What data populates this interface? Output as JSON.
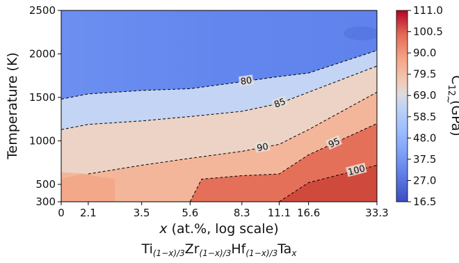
{
  "chart_data": {
    "type": "heatmap",
    "title": "",
    "xlabel": "x (at.%, log scale)",
    "xlabel_parts": {
      "var": "x",
      "rest": " (at.%, log scale)"
    },
    "composition_label": {
      "elements": [
        {
          "el": "Ti",
          "sub": "(1−x)/3"
        },
        {
          "el": "Zr",
          "sub": "(1−x)/3"
        },
        {
          "el": "Hf",
          "sub": "(1−x)/3"
        },
        {
          "el": "Ta",
          "sub": "x"
        }
      ]
    },
    "ylabel": "Temperature (K)",
    "x_scale": "log",
    "x_ticks": [
      0,
      2.1,
      3.5,
      5.6,
      8.3,
      11.1,
      16.6,
      33.3
    ],
    "x_tick_labels": [
      "0",
      "2.1",
      "3.5",
      "5.6",
      "8.3",
      "11.1",
      "16.6",
      "33.3"
    ],
    "y_ticks": [
      300,
      500,
      1000,
      1500,
      2000,
      2500
    ],
    "y_tick_labels": [
      "300",
      "500",
      "1000",
      "1500",
      "2000",
      "2500"
    ],
    "xlim": [
      0,
      33.3
    ],
    "ylim": [
      300,
      2500
    ],
    "colorbar": {
      "label": "C̃₁₂ (GPa)",
      "label_parts": {
        "symbol": "C",
        "sub": "12",
        "unit": " (GPa)"
      },
      "min": 16.5,
      "max": 111.0,
      "colormap": "coolwarm",
      "ticks": [
        111.0,
        100.5,
        90.0,
        79.5,
        69.0,
        58.5,
        48.0,
        37.5,
        27.0,
        16.5
      ],
      "tick_labels": [
        "111.0",
        "100.5",
        "90.0",
        "79.5",
        "69.0",
        "58.5",
        "48.0",
        "37.5",
        "27.0",
        "16.5"
      ]
    },
    "contours": [
      {
        "level": 80,
        "label": "80",
        "points": [
          [
            0,
            1480
          ],
          [
            2.1,
            1540
          ],
          [
            3.5,
            1580
          ],
          [
            5.6,
            1600
          ],
          [
            8.3,
            1680
          ],
          [
            11.1,
            1740
          ],
          [
            16.6,
            1780
          ],
          [
            33.3,
            2040
          ]
        ]
      },
      {
        "level": 85,
        "label": "85",
        "points": [
          [
            0,
            1130
          ],
          [
            2.1,
            1190
          ],
          [
            3.5,
            1230
          ],
          [
            5.6,
            1280
          ],
          [
            8.3,
            1340
          ],
          [
            11.1,
            1430
          ],
          [
            16.6,
            1560
          ],
          [
            33.3,
            1860
          ]
        ]
      },
      {
        "level": 90,
        "label": "90",
        "points": [
          [
            2.1,
            620
          ],
          [
            3.5,
            720
          ],
          [
            5.6,
            800
          ],
          [
            8.3,
            880
          ],
          [
            11.1,
            960
          ],
          [
            16.6,
            1130
          ],
          [
            33.3,
            1560
          ]
        ]
      },
      {
        "level": 95,
        "label": "95",
        "points": [
          [
            5.6,
            300
          ],
          [
            6.2,
            560
          ],
          [
            8.3,
            600
          ],
          [
            11.1,
            620
          ],
          [
            16.6,
            840
          ],
          [
            33.3,
            1200
          ]
        ]
      },
      {
        "level": 100,
        "label": "100",
        "points": [
          [
            11.1,
            300
          ],
          [
            16.6,
            520
          ],
          [
            33.3,
            720
          ]
        ]
      }
    ]
  },
  "colors": {
    "cold": "#3b4cc0",
    "neutral": "#dddddd",
    "hot": "#b40426"
  }
}
